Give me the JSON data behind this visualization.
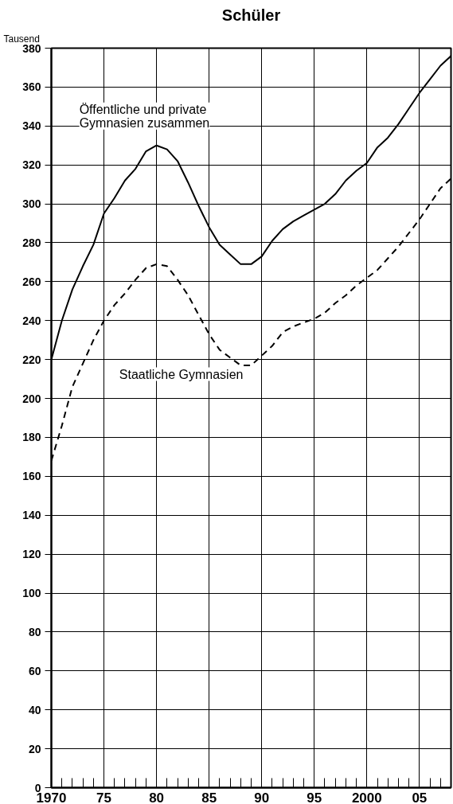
{
  "chart_data": {
    "type": "line",
    "title": "Schüler",
    "ylabel": "Tausend",
    "x": [
      1970,
      1971,
      1972,
      1973,
      1974,
      1975,
      1976,
      1977,
      1978,
      1979,
      1980,
      1981,
      1982,
      1983,
      1984,
      1985,
      1986,
      1987,
      1988,
      1989,
      1990,
      1991,
      1992,
      1993,
      1994,
      1995,
      1996,
      1997,
      1998,
      1999,
      2000,
      2001,
      2002,
      2003,
      2004,
      2005,
      2006,
      2007,
      2008
    ],
    "series": [
      {
        "name": "Öffentliche und private Gymnasien zusammen",
        "color": "#000000",
        "line_style": "solid",
        "values": [
          220,
          240,
          256,
          268,
          279,
          295,
          303,
          312,
          318,
          327,
          330,
          328,
          322,
          311,
          299,
          288,
          279,
          274,
          269,
          269,
          273,
          281,
          287,
          291,
          294,
          297,
          300,
          305,
          312,
          317,
          321,
          329,
          334,
          341,
          349,
          357,
          364,
          371,
          376
        ]
      },
      {
        "name": "Staatliche Gymnasien",
        "color": "#000000",
        "line_style": "dashed",
        "values": [
          168,
          186,
          206,
          218,
          230,
          240,
          248,
          254,
          261,
          267,
          269,
          268,
          261,
          253,
          243,
          233,
          225,
          221,
          217,
          217,
          222,
          227,
          234,
          237,
          239,
          241,
          244,
          249,
          253,
          258,
          262,
          266,
          272,
          278,
          285,
          292,
          300,
          308,
          313
        ]
      }
    ],
    "xlim": [
      1970,
      2008
    ],
    "xticks": [
      {
        "value": 1970,
        "label": "1970"
      },
      {
        "value": 1975,
        "label": "75"
      },
      {
        "value": 1980,
        "label": "80"
      },
      {
        "value": 1985,
        "label": "85"
      },
      {
        "value": 1990,
        "label": "90"
      },
      {
        "value": 1995,
        "label": "95"
      },
      {
        "value": 2000,
        "label": "2000"
      },
      {
        "value": 2005,
        "label": "05"
      }
    ],
    "ylim": [
      0,
      380
    ],
    "yticks": [
      0,
      20,
      40,
      60,
      80,
      100,
      120,
      140,
      160,
      180,
      200,
      220,
      240,
      260,
      280,
      300,
      320,
      340,
      360,
      380
    ],
    "grid": true,
    "legend": false,
    "marker": "none"
  }
}
